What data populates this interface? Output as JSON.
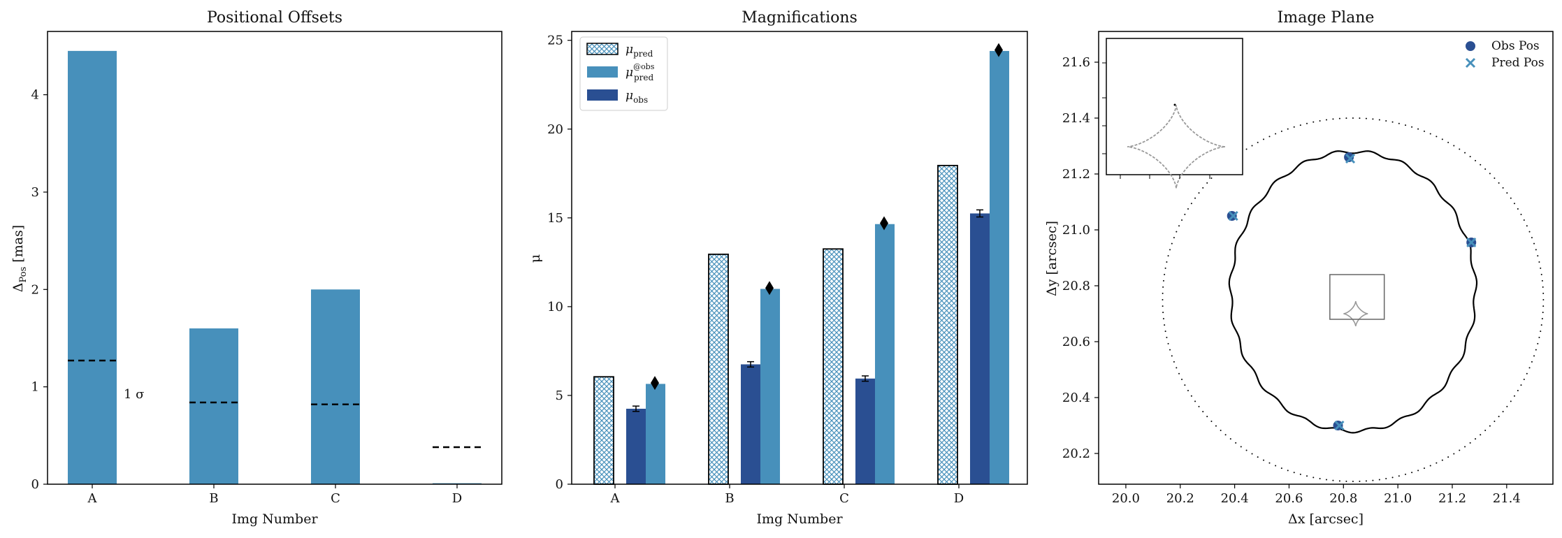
{
  "chart_data": [
    {
      "type": "bar",
      "title": "Positional Offsets",
      "xlabel": "Img Number",
      "ylabel": {
        "main": "Δ",
        "sub": "Pos",
        "unit": " [mas]"
      },
      "categories": [
        "A",
        "B",
        "C",
        "D"
      ],
      "values": [
        4.45,
        1.6,
        2.0,
        0.01
      ],
      "sigma_lines": [
        1.27,
        0.84,
        0.82,
        0.38
      ],
      "sigma_annotation": "1 σ",
      "ylim": [
        0,
        4.65
      ],
      "yticks": [
        "0",
        "1",
        "2",
        "3",
        "4"
      ],
      "bar_color": "#4790bb",
      "line_color": "#000000"
    },
    {
      "type": "bar",
      "title": "Magnifications",
      "xlabel": "Img Number",
      "ylabel": "μ",
      "categories": [
        "A",
        "B",
        "C",
        "D"
      ],
      "ylim": [
        0,
        25.5
      ],
      "yticks": [
        "0",
        "5",
        "10",
        "15",
        "20",
        "25"
      ],
      "series": [
        {
          "key": "pred",
          "legend_main": "μ",
          "legend_sub": "pred",
          "legend_sup": "",
          "values": [
            6.05,
            12.95,
            13.25,
            17.95
          ],
          "color": "#ffffff",
          "hatch": "#4790bb"
        },
        {
          "key": "obs",
          "legend_main": "μ",
          "legend_sub": "obs",
          "legend_sup": "",
          "values": [
            4.25,
            6.75,
            5.95,
            15.25
          ],
          "errors": [
            0.15,
            0.15,
            0.15,
            0.2
          ],
          "color": "#2a4f92"
        },
        {
          "key": "predobs",
          "legend_main": "μ",
          "legend_sub": "pred",
          "legend_sup": "@obs",
          "values": [
            5.65,
            11.0,
            14.65,
            24.4
          ],
          "color": "#4790bb"
        }
      ],
      "diamond_markers": [
        5.7,
        11.05,
        14.7,
        24.45
      ],
      "legend_placement": "top-left"
    },
    {
      "type": "scatter",
      "title": "Image Plane",
      "xlabel": "Δx [arcsec]",
      "ylabel": "Δy [arcsec]",
      "xlim": [
        19.9,
        21.57
      ],
      "ylim": [
        20.09,
        21.71
      ],
      "xticks": [
        "20.0",
        "20.2",
        "20.4",
        "20.6",
        "20.8",
        "21.0",
        "21.2",
        "21.4"
      ],
      "yticks": [
        "20.2",
        "20.4",
        "20.6",
        "20.8",
        "21.0",
        "21.2",
        "21.4",
        "21.6"
      ],
      "series": [
        {
          "name": "Obs Pos",
          "marker": "circle",
          "color": "#2a4f92",
          "x": [
            20.39,
            20.82,
            21.27,
            20.78
          ],
          "y": [
            21.05,
            21.26,
            20.955,
            20.3
          ]
        },
        {
          "name": "Pred Pos",
          "marker": "x",
          "color": "#4790bb",
          "x": [
            20.395,
            20.825,
            21.27,
            20.785
          ],
          "y": [
            21.05,
            21.255,
            20.955,
            20.3
          ]
        }
      ],
      "critical_curve": {
        "cx": 20.835,
        "cy": 20.78,
        "rx": 0.45,
        "ry": 0.5,
        "color": "#000000"
      },
      "caustic_outer": {
        "cx": 20.835,
        "cy": 20.75,
        "rx": 0.7,
        "ry": 0.65,
        "color": "#000000"
      },
      "caustic_inner": {
        "cx": 20.845,
        "cy": 20.7,
        "r": 0.045,
        "color": "#999999"
      },
      "zoom_box": {
        "x0": 20.75,
        "x1": 20.95,
        "y0": 20.68,
        "y1": 20.84
      },
      "legend_placement": "top-right"
    }
  ]
}
